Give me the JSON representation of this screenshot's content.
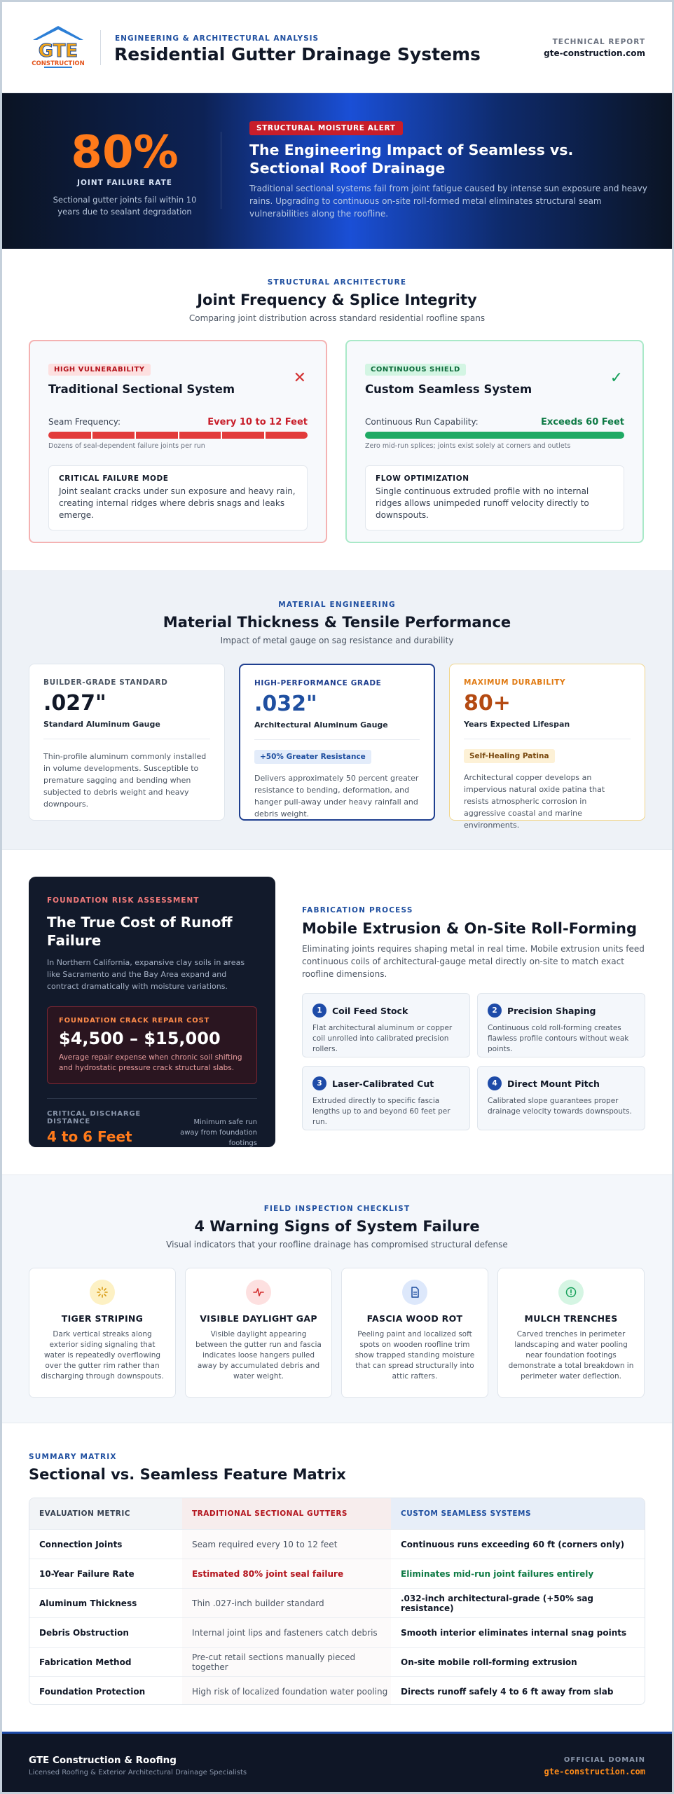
{
  "header": {
    "logo_text": "GTE",
    "logo_sub": "CONSTRUCTION",
    "eyebrow": "ENGINEERING & ARCHITECTURAL ANALYSIS",
    "title": "Residential Gutter Drainage Systems",
    "right_label": "TECHNICAL REPORT",
    "right_domain": "gte-construction.com"
  },
  "hero": {
    "stat": "80%",
    "stat_label": "JOINT FAILURE RATE",
    "stat_desc": "Sectional gutter joints fail within 10 years due to sealant degradation",
    "badge": "STRUCTURAL MOISTURE ALERT",
    "title": "The Engineering Impact of Seamless vs. Sectional Roof Drainage",
    "subtitle": "Traditional sectional systems fail from joint fatigue caused by intense sun exposure and heavy rains. Upgrading to continuous on-site roll-formed metal eliminates structural seam vulnerabilities along the roofline."
  },
  "joints": {
    "eyebrow": "STRUCTURAL ARCHITECTURE",
    "title": "Joint Frequency & Splice Integrity",
    "subtitle": "Comparing joint distribution across standard residential roofline spans",
    "sectional": {
      "chip": "HIGH VULNERABILITY",
      "title": "Traditional Sectional System",
      "mark": "✕",
      "row_label": "Seam Frequency:",
      "row_value": "Every 10 to 12 Feet",
      "note": "Dozens of seal-dependent failure joints per run",
      "box_title": "CRITICAL FAILURE MODE",
      "box_text": "Joint sealant cracks under sun exposure and heavy rain, creating internal ridges where debris snags and leaks emerge."
    },
    "seamless": {
      "chip": "CONTINUOUS SHIELD",
      "title": "Custom Seamless System",
      "mark": "✓",
      "row_label": "Continuous Run Capability:",
      "row_value": "Exceeds 60 Feet",
      "note": "Zero mid-run splices; joints exist solely at corners and outlets",
      "box_title": "FLOW OPTIMIZATION",
      "box_text": "Single continuous extruded profile with no internal ridges allows unimpeded runoff velocity directly to downspouts."
    }
  },
  "materials": {
    "eyebrow": "MATERIAL ENGINEERING",
    "title": "Material Thickness & Tensile Performance",
    "subtitle": "Impact of metal gauge on sag resistance and durability",
    "cards": [
      {
        "label": "BUILDER-GRADE STANDARD",
        "value": ".027\"",
        "sub": "Standard Aluminum Gauge",
        "chip": "",
        "text": "Thin-profile aluminum commonly installed in volume developments. Susceptible to premature sagging and bending when subjected to debris weight and heavy downpours."
      },
      {
        "label": "HIGH-PERFORMANCE GRADE",
        "value": ".032\"",
        "sub": "Architectural Aluminum Gauge",
        "chip": "+50% Greater Resistance",
        "text": "Delivers approximately 50 percent greater resistance to bending, deformation, and hanger pull-away under heavy rainfall and debris weight."
      },
      {
        "label": "MAXIMUM DURABILITY",
        "value": "80+",
        "sub": "Years Expected Lifespan",
        "chip": "Self-Healing Patina",
        "text": "Architectural copper develops an impervious natural oxide patina that resists atmospheric corrosion in aggressive coastal and marine environments."
      }
    ]
  },
  "foundation": {
    "eyebrow": "FOUNDATION RISK ASSESSMENT",
    "title": "The True Cost of Runoff Failure",
    "text": "In Northern California, expansive clay soils in areas like Sacramento and the Bay Area expand and contract dramatically with moisture variations.",
    "box_label": "FOUNDATION CRACK REPAIR COST",
    "box_value": "$4,500 – $15,000",
    "box_text": "Average repair expense when chronic soil shifting and hydrostatic pressure crack structural slabs.",
    "dist_label": "CRITICAL DISCHARGE DISTANCE",
    "dist_value": "4 to 6 Feet",
    "dist_note": "Minimum safe run away from foundation footings"
  },
  "fabrication": {
    "eyebrow": "FABRICATION PROCESS",
    "title": "Mobile Extrusion & On-Site Roll-Forming",
    "text": "Eliminating joints requires shaping metal in real time. Mobile extrusion units feed continuous coils of architectural-gauge metal directly on-site to match exact roofline dimensions.",
    "steps": [
      {
        "num": "1",
        "title": "Coil Feed Stock",
        "text": "Flat architectural aluminum or copper coil unrolled into calibrated precision rollers."
      },
      {
        "num": "2",
        "title": "Precision Shaping",
        "text": "Continuous cold roll-forming creates flawless profile contours without weak points."
      },
      {
        "num": "3",
        "title": "Laser-Calibrated Cut",
        "text": "Extruded directly to specific fascia lengths up to and beyond 60 feet per run."
      },
      {
        "num": "4",
        "title": "Direct Mount Pitch",
        "text": "Calibrated slope guarantees proper drainage velocity towards downspouts."
      }
    ]
  },
  "warnings": {
    "eyebrow": "FIELD INSPECTION CHECKLIST",
    "title": "4 Warning Signs of System Failure",
    "subtitle": "Visual indicators that your roofline drainage has compromised structural defense",
    "cards": [
      {
        "icon": "sun-icon",
        "title": "TIGER STRIPING",
        "text": "Dark vertical streaks along exterior siding signaling that water is repeatedly overflowing over the gutter rim rather than discharging through downspouts."
      },
      {
        "icon": "pulse-icon",
        "title": "VISIBLE DAYLIGHT GAP",
        "text": "Visible daylight appearing between the gutter run and fascia indicates loose hangers pulled away by accumulated debris and water weight."
      },
      {
        "icon": "document-icon",
        "title": "FASCIA WOOD ROT",
        "text": "Peeling paint and localized soft spots on wooden roofline trim show trapped standing moisture that can spread structurally into attic rafters."
      },
      {
        "icon": "alert-circle-icon",
        "title": "MULCH TRENCHES",
        "text": "Carved trenches in perimeter landscaping and water pooling near foundation footings demonstrate a total breakdown in perimeter water deflection."
      }
    ],
    "colors": [
      "#fdf1c4",
      "#fde0e0",
      "#dde8fb",
      "#d5f5e3"
    ]
  },
  "matrix": {
    "eyebrow": "SUMMARY MATRIX",
    "title": "Sectional vs. Seamless Feature Matrix",
    "headers": [
      "EVALUATION METRIC",
      "TRADITIONAL SECTIONAL GUTTERS",
      "CUSTOM SEAMLESS SYSTEMS"
    ],
    "rows": [
      [
        "Connection Joints",
        "Seam required every 10 to 12 feet",
        "Continuous runs exceeding 60 ft (corners only)"
      ],
      [
        "10-Year Failure Rate",
        "Estimated 80% joint seal failure",
        "Eliminates mid-run joint failures entirely"
      ],
      [
        "Aluminum Thickness",
        "Thin .027-inch builder standard",
        ".032-inch architectural-grade (+50% sag resistance)"
      ],
      [
        "Debris Obstruction",
        "Internal joint lips and fasteners catch debris",
        "Smooth interior eliminates internal snag points"
      ],
      [
        "Fabrication Method",
        "Pre-cut retail sections manually pieced together",
        "On-site mobile roll-forming extrusion"
      ],
      [
        "Foundation Protection",
        "High risk of localized foundation water pooling",
        "Directs runoff safely 4 to 6 ft away from slab"
      ]
    ]
  },
  "footer": {
    "name": "GTE Construction & Roofing",
    "sub": "Licensed Roofing & Exterior Architectural Drainage Specialists",
    "label": "OFFICIAL DOMAIN",
    "domain": "gte-construction.com"
  }
}
